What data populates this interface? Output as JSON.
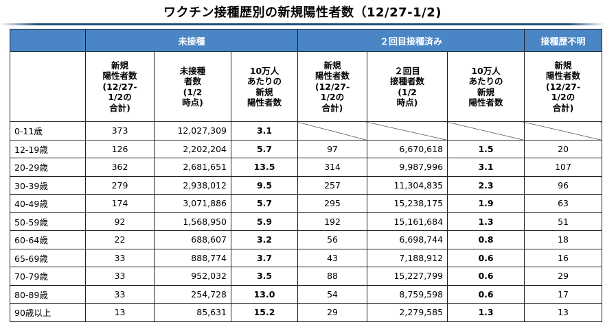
{
  "title": "ワクチン接種歴別の新規陽性者数（12/27-1/2)",
  "groups": {
    "unvaccinated": "未接種",
    "two_doses": "２回目接種済み",
    "unknown": "接種歴不明"
  },
  "subheaders": [
    "新規\n陽性者数\n(12/27-\n1/2の\n合計)",
    "未接種\n者数\n(1/2\n時点)",
    "10万人\nあたりの\n新規\n陽性者数",
    "新規\n陽性者数\n(12/27-\n1/2の\n合計)",
    "２回目\n接種者数\n(1/2\n時点)",
    "10万人\nあたりの\n新規\n陽性者数",
    "新規\n陽性者数\n(12/27-\n1/2の\n合計)"
  ],
  "rows": [
    {
      "age": "0-11歳",
      "u_new": "373",
      "u_pop": "12,027,309",
      "u_rate": "3.1",
      "v_new": "",
      "v_pop": "",
      "v_rate": "",
      "x_new": "",
      "na": true
    },
    {
      "age": "12-19歳",
      "u_new": "126",
      "u_pop": "2,202,204",
      "u_rate": "5.7",
      "v_new": "97",
      "v_pop": "6,670,618",
      "v_rate": "1.5",
      "x_new": "20"
    },
    {
      "age": "20-29歳",
      "u_new": "362",
      "u_pop": "2,681,651",
      "u_rate": "13.5",
      "v_new": "314",
      "v_pop": "9,987,996",
      "v_rate": "3.1",
      "x_new": "107"
    },
    {
      "age": "30-39歳",
      "u_new": "279",
      "u_pop": "2,938,012",
      "u_rate": "9.5",
      "v_new": "257",
      "v_pop": "11,304,835",
      "v_rate": "2.3",
      "x_new": "96"
    },
    {
      "age": "40-49歳",
      "u_new": "174",
      "u_pop": "3,071,886",
      "u_rate": "5.7",
      "v_new": "295",
      "v_pop": "15,238,175",
      "v_rate": "1.9",
      "x_new": "63"
    },
    {
      "age": "50-59歳",
      "u_new": "92",
      "u_pop": "1,568,950",
      "u_rate": "5.9",
      "v_new": "192",
      "v_pop": "15,161,684",
      "v_rate": "1.3",
      "x_new": "51"
    },
    {
      "age": "60-64歳",
      "u_new": "22",
      "u_pop": "688,607",
      "u_rate": "3.2",
      "v_new": "56",
      "v_pop": "6,698,744",
      "v_rate": "0.8",
      "x_new": "18"
    },
    {
      "age": "65-69歳",
      "u_new": "33",
      "u_pop": "888,774",
      "u_rate": "3.7",
      "v_new": "43",
      "v_pop": "7,188,912",
      "v_rate": "0.6",
      "x_new": "16"
    },
    {
      "age": "70-79歳",
      "u_new": "33",
      "u_pop": "952,032",
      "u_rate": "3.5",
      "v_new": "88",
      "v_pop": "15,227,799",
      "v_rate": "0.6",
      "x_new": "29"
    },
    {
      "age": "80-89歳",
      "u_new": "33",
      "u_pop": "254,728",
      "u_rate": "13.0",
      "v_new": "54",
      "v_pop": "8,759,598",
      "v_rate": "0.6",
      "x_new": "17"
    },
    {
      "age": "90歳以上",
      "u_new": "13",
      "u_pop": "85,631",
      "u_rate": "15.2",
      "v_new": "29",
      "v_pop": "2,279,585",
      "v_rate": "1.3",
      "x_new": "13"
    }
  ]
}
